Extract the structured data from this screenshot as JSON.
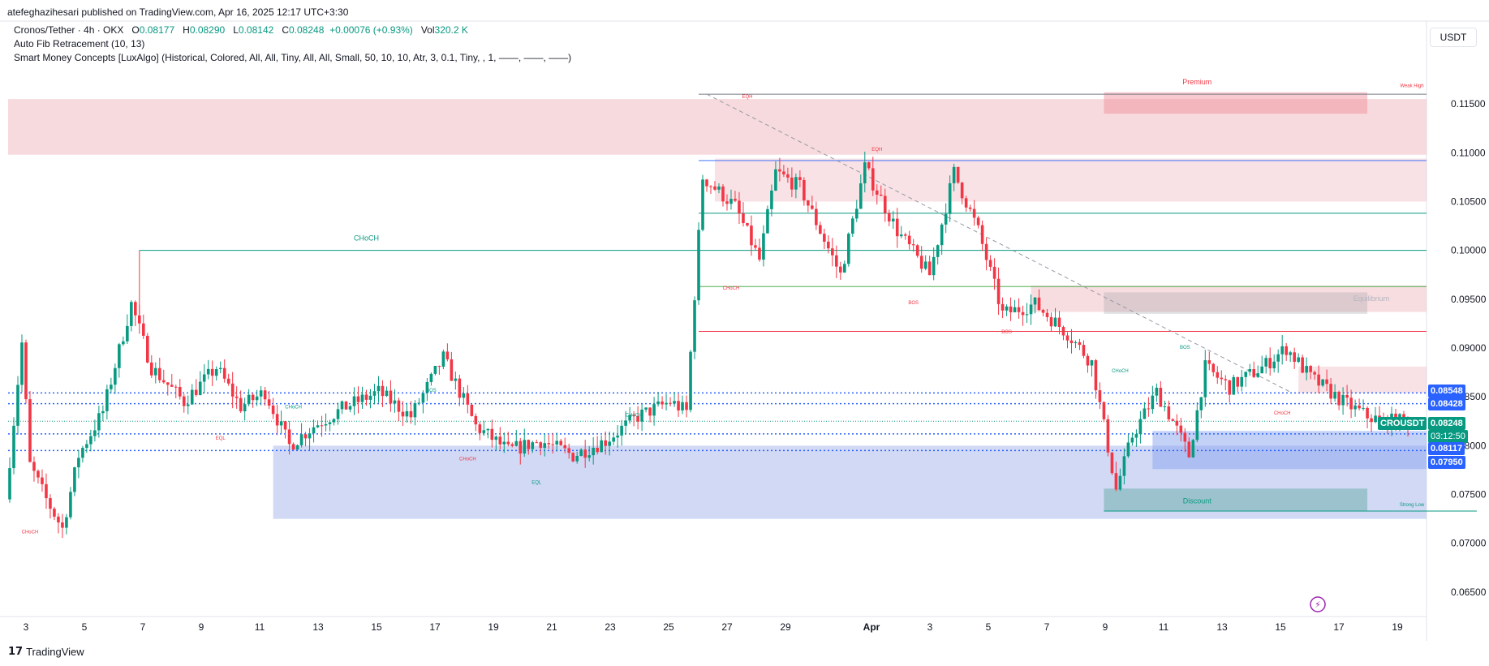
{
  "header": {
    "publish_line": "atefeghazihesari published on TradingView.com, Apr 16, 2025 12:17 UTC+3:30",
    "symbol_line": "Cronos/Tether · 4h · OKX",
    "ohlc": {
      "o_label": "O",
      "o": "0.08177",
      "h_label": "H",
      "h": "0.08290",
      "l_label": "L",
      "l": "0.08142",
      "c_label": "C",
      "c": "0.08248",
      "change": "+0.00076 (+0.93%)",
      "vol_label": "Vol",
      "vol": "320.2 K"
    },
    "indicator_1": "Auto Fib Retracement (10, 13)",
    "indicator_2": "Smart Money Concepts [LuxAlgo] (Historical, Colored, All, All, Tiny, All, All, Small, 50, 10, 10, Atr, 3, 0.1, Tiny, , 1, ——, ——, ——)"
  },
  "currency_button": "USDT",
  "brand": {
    "name": "TradingView",
    "logo": "17"
  },
  "colors": {
    "up": "#089981",
    "down": "#f23645",
    "blue": "#2962ff",
    "premium_zone": "#f2c6cb",
    "discount_zone": "#c5d0f2",
    "axis_text": "#131722"
  },
  "price_tags": {
    "p1": "0.08548",
    "p2": "0.08428",
    "symbol": "CROUSDT",
    "current": "0.08248",
    "countdown": "03:12:50",
    "p3": "0.08117",
    "p4": "0.07950"
  },
  "chart_data": {
    "type": "candlestick",
    "timeframe": "4h",
    "yaxis_ticks": [
      "0.11500",
      "0.11000",
      "0.10500",
      "0.10000",
      "0.09500",
      "0.09000",
      "0.08500",
      "0.08000",
      "0.07500",
      "0.07000",
      "0.06500"
    ],
    "ylim": [
      0.0625,
      0.1185
    ],
    "xaxis_ticks": [
      "3",
      "5",
      "7",
      "9",
      "11",
      "13",
      "15",
      "17",
      "19",
      "21",
      "23",
      "25",
      "27",
      "29",
      "Apr",
      "3",
      "5",
      "7",
      "9",
      "11",
      "13",
      "15",
      "17",
      "19"
    ],
    "waypoints": [
      [
        0,
        0.0745
      ],
      [
        4,
        0.0905
      ],
      [
        6,
        0.078
      ],
      [
        10,
        0.0745
      ],
      [
        14,
        0.0715
      ],
      [
        18,
        0.079
      ],
      [
        24,
        0.0835
      ],
      [
        31,
        0.0945
      ],
      [
        36,
        0.088
      ],
      [
        44,
        0.0845
      ],
      [
        52,
        0.088
      ],
      [
        58,
        0.084
      ],
      [
        64,
        0.0855
      ],
      [
        70,
        0.08
      ],
      [
        76,
        0.082
      ],
      [
        84,
        0.084
      ],
      [
        92,
        0.0855
      ],
      [
        100,
        0.083
      ],
      [
        108,
        0.089
      ],
      [
        116,
        0.082
      ],
      [
        124,
        0.0795
      ],
      [
        132,
        0.0805
      ],
      [
        140,
        0.079
      ],
      [
        148,
        0.0805
      ],
      [
        156,
        0.083
      ],
      [
        164,
        0.0845
      ],
      [
        168,
        0.0835
      ],
      [
        172,
        0.1075
      ],
      [
        180,
        0.1045
      ],
      [
        186,
        0.099
      ],
      [
        190,
        0.108
      ],
      [
        196,
        0.1065
      ],
      [
        206,
        0.0975
      ],
      [
        212,
        0.1085
      ],
      [
        220,
        0.102
      ],
      [
        228,
        0.0975
      ],
      [
        234,
        0.108
      ],
      [
        240,
        0.102
      ],
      [
        246,
        0.0935
      ],
      [
        254,
        0.0945
      ],
      [
        262,
        0.0915
      ],
      [
        268,
        0.0885
      ],
      [
        274,
        0.0755
      ],
      [
        278,
        0.081
      ],
      [
        284,
        0.0855
      ],
      [
        288,
        0.0825
      ],
      [
        292,
        0.079
      ],
      [
        296,
        0.088
      ],
      [
        302,
        0.086
      ],
      [
        310,
        0.088
      ],
      [
        316,
        0.09
      ],
      [
        322,
        0.087
      ],
      [
        330,
        0.0845
      ],
      [
        336,
        0.083
      ],
      [
        340,
        0.0825
      ]
    ],
    "annotations": [
      {
        "text": "CHoCH",
        "price": 0.101,
        "date_index": 88,
        "color": "#089981",
        "size": 9
      },
      {
        "text": "Premium",
        "price": 0.117,
        "date_index": 293,
        "color": "#f23645",
        "size": 9
      },
      {
        "text": "Weak High",
        "price": 0.1167,
        "date_index": 346,
        "color": "#f23645",
        "size": 6
      },
      {
        "text": "EQH",
        "price": 0.1156,
        "date_index": 182,
        "color": "#f23645",
        "size": 6
      },
      {
        "text": "EQH",
        "price": 0.1102,
        "date_index": 214,
        "color": "#f23645",
        "size": 6
      },
      {
        "text": "CHoCH",
        "price": 0.096,
        "date_index": 178,
        "color": "#f23645",
        "size": 6
      },
      {
        "text": "BOS",
        "price": 0.0945,
        "date_index": 223,
        "color": "#f23645",
        "size": 6
      },
      {
        "text": "BOS",
        "price": 0.0915,
        "date_index": 246,
        "color": "#f23645",
        "size": 6
      },
      {
        "text": "Equilibrium",
        "price": 0.0948,
        "date_index": 336,
        "color": "#b2b5be",
        "size": 9
      },
      {
        "text": "CHoCH",
        "price": 0.0875,
        "date_index": 274,
        "color": "#089981",
        "size": 6
      },
      {
        "text": "BOS",
        "price": 0.0899,
        "date_index": 290,
        "color": "#089981",
        "size": 6
      },
      {
        "text": "CHoCH",
        "price": 0.0832,
        "date_index": 314,
        "color": "#f23645",
        "size": 6
      },
      {
        "text": "BOS",
        "price": 0.0855,
        "date_index": 104,
        "color": "#089981",
        "size": 6
      },
      {
        "text": "CHoCH",
        "price": 0.0838,
        "date_index": 70,
        "color": "#089981",
        "size": 6
      },
      {
        "text": "CHoCH",
        "price": 0.083,
        "date_index": 154,
        "color": "#089981",
        "size": 6
      },
      {
        "text": "EQL",
        "price": 0.0806,
        "date_index": 52,
        "color": "#f23645",
        "size": 6
      },
      {
        "text": "CHoCH",
        "price": 0.0785,
        "date_index": 113,
        "color": "#f23645",
        "size": 6
      },
      {
        "text": "EQL",
        "price": 0.0761,
        "date_index": 130,
        "color": "#089981",
        "size": 6
      },
      {
        "text": "CHoCH",
        "price": 0.071,
        "date_index": 5,
        "color": "#f23645",
        "size": 6
      },
      {
        "text": "Discount",
        "price": 0.0741,
        "date_index": 293,
        "color": "#089981",
        "size": 9
      },
      {
        "text": "Strong Low",
        "price": 0.0738,
        "date_index": 346,
        "color": "#089981",
        "size": 6
      }
    ]
  }
}
